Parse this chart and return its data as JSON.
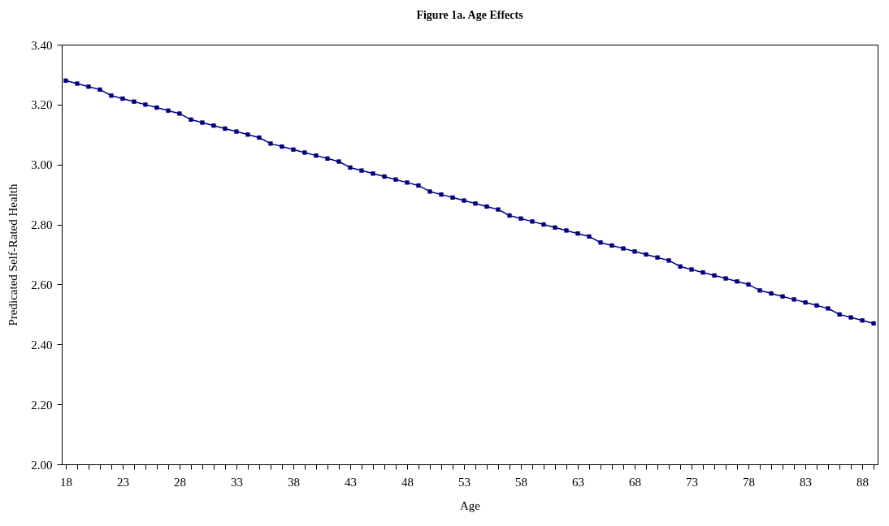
{
  "chart_data": {
    "type": "line",
    "title": "Figure 1a. Age Effects",
    "xlabel": "Age",
    "ylabel": "Predicated Self-Rated Health",
    "categories": [
      "18",
      null,
      null,
      null,
      null,
      "23",
      null,
      null,
      null,
      null,
      "28",
      null,
      null,
      null,
      null,
      "33",
      null,
      null,
      null,
      null,
      "38",
      null,
      null,
      null,
      null,
      "43",
      null,
      null,
      null,
      null,
      "48",
      null,
      null,
      null,
      null,
      "53",
      null,
      null,
      null,
      null,
      "58",
      null,
      null,
      null,
      null,
      "63",
      null,
      null,
      null,
      null,
      "68",
      null,
      null,
      null,
      null,
      "73",
      null,
      null,
      null,
      null,
      "78",
      null,
      null,
      null,
      null,
      "83",
      null,
      null,
      null,
      null,
      "88",
      null
    ],
    "series": [
      {
        "color": "#000080",
        "values": [
          3.28,
          3.27,
          3.26,
          3.25,
          3.23,
          3.22,
          3.21,
          3.2,
          3.19,
          3.18,
          3.17,
          3.15,
          3.14,
          3.13,
          3.12,
          3.11,
          3.1,
          3.09,
          3.07,
          3.06,
          3.05,
          3.04,
          3.03,
          3.02,
          3.01,
          2.99,
          2.98,
          2.97,
          2.96,
          2.95,
          2.94,
          2.93,
          2.91,
          2.9,
          2.89,
          2.88,
          2.87,
          2.86,
          2.85,
          2.83,
          2.82,
          2.81,
          2.8,
          2.79,
          2.78,
          2.77,
          2.76,
          2.74,
          2.73,
          2.72,
          2.71,
          2.7,
          2.69,
          2.68,
          2.66,
          2.65,
          2.64,
          2.63,
          2.62,
          2.61,
          2.6,
          2.58,
          2.57,
          2.56,
          2.55,
          2.54,
          2.53,
          2.52,
          2.5,
          2.49,
          2.48,
          2.47
        ]
      }
    ],
    "ylim": [
      2,
      3.4
    ],
    "yticks": [
      {
        "value": 2,
        "label": "2.00"
      },
      {
        "value": 2.2,
        "label": "2.20"
      },
      {
        "value": 2.4,
        "label": "2.40"
      },
      {
        "value": 2.6,
        "label": "2.60"
      },
      {
        "value": 2.8,
        "label": "2.80"
      },
      {
        "value": 3,
        "label": "3.00"
      },
      {
        "value": 3.2,
        "label": "3.20"
      },
      {
        "value": 3.4,
        "label": "3.40"
      }
    ],
    "grid": false,
    "marker": "square",
    "line_style": "solid"
  }
}
